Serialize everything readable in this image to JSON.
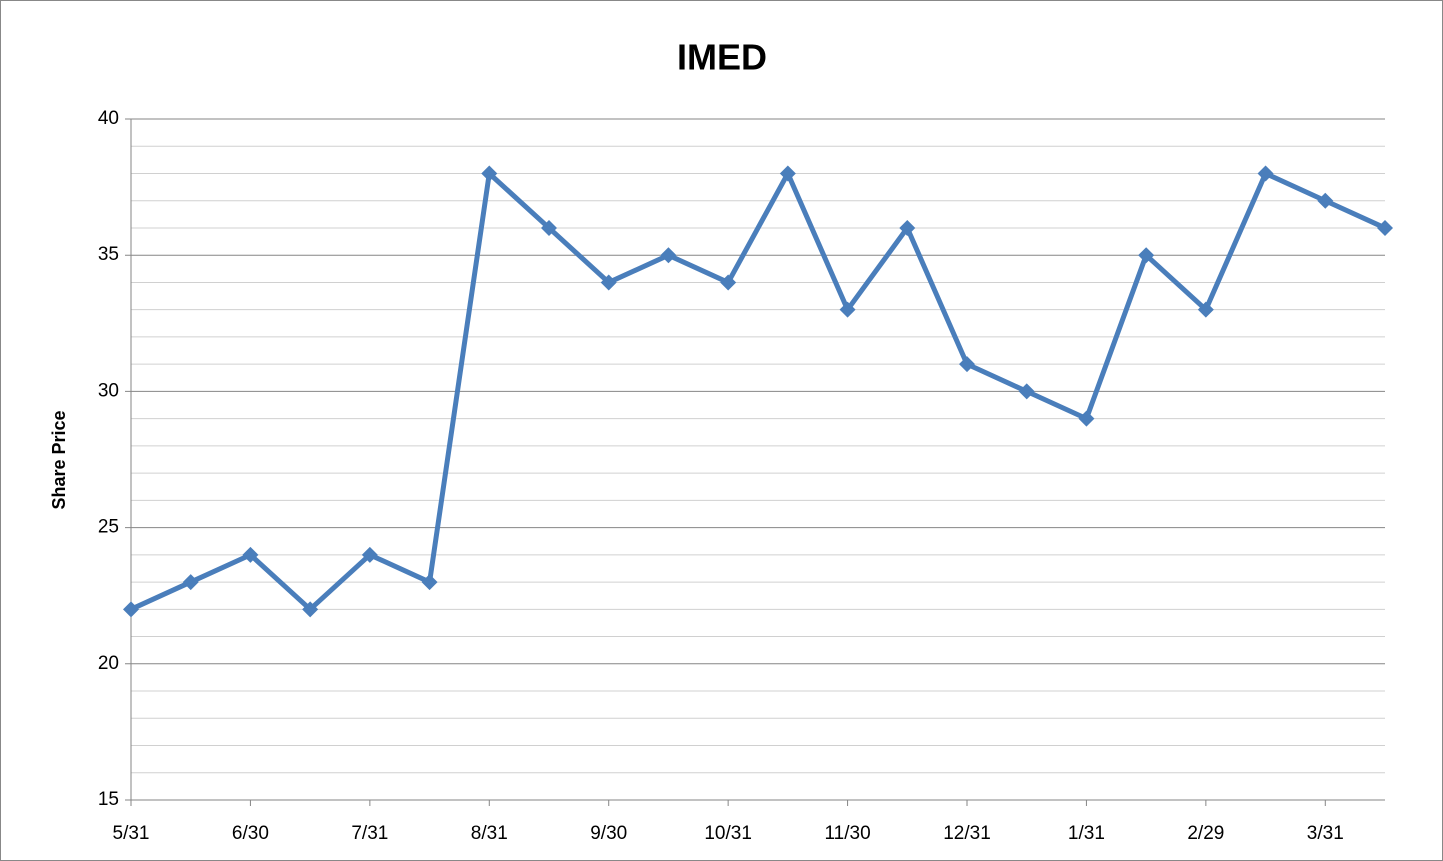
{
  "chart_data": {
    "type": "line",
    "title": "IMED",
    "y_label": "Share Price",
    "categories": [
      "5/31",
      null,
      "6/30",
      null,
      "7/31",
      null,
      "8/31",
      null,
      "9/30",
      null,
      "10/31",
      null,
      "11/30",
      null,
      "12/31",
      null,
      "1/31",
      null,
      "2/29",
      null,
      "3/31",
      null
    ],
    "series": [
      {
        "name": "IMED",
        "color": "#4a7ebb",
        "values": [
          22,
          23,
          24,
          22,
          24,
          23,
          38,
          36,
          34,
          35,
          34,
          38,
          33,
          36,
          31,
          30,
          29,
          35,
          33,
          38,
          37,
          36
        ]
      }
    ],
    "ylim": [
      15,
      40
    ],
    "yticks": [
      15,
      20,
      25,
      30,
      35,
      40
    ],
    "yminorticks": [
      16,
      17,
      18,
      19,
      21,
      22,
      23,
      24,
      26,
      27,
      28,
      29,
      31,
      32,
      33,
      34,
      36,
      37,
      38,
      39
    ],
    "grid": true,
    "minor_grid": true,
    "marker": "diamond"
  }
}
